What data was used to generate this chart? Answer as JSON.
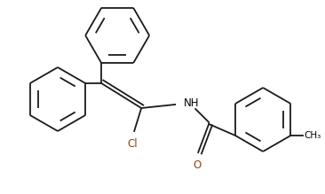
{
  "background_color": "#ffffff",
  "line_color": "#1a1a1a",
  "line_width": 1.3,
  "text_color": "#000000",
  "cl_color": "#8B4513",
  "o_color": "#8B4513",
  "font_size": 8.5,
  "figsize": [
    3.66,
    2.19
  ],
  "dpi": 100,
  "xlim": [
    0,
    366
  ],
  "ylim": [
    0,
    219
  ]
}
